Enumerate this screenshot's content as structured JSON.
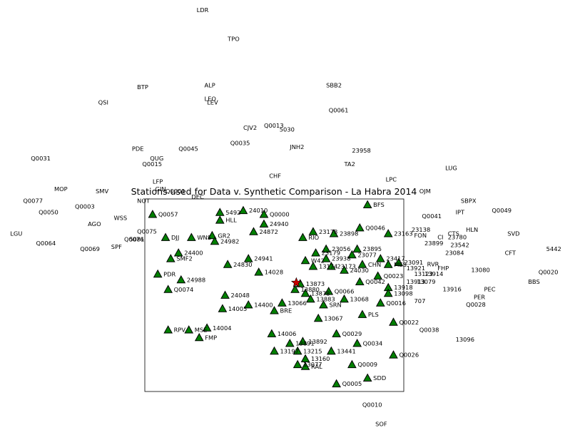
{
  "chart_data": {
    "type": "scatter",
    "title": "Stations used for Data v. Synthetic Comparison - La Habra 2014",
    "xlabel": "",
    "ylabel": "",
    "xlim": [
      0,
      100
    ],
    "ylim": [
      0,
      100
    ],
    "grid": false,
    "legend": "none",
    "marker_color": "#008000",
    "event_color": "#cc0000",
    "event": {
      "x": 58.5,
      "y": 56.5
    },
    "stations": [
      {
        "label": "BFS",
        "x": 86,
        "y": 97,
        "marker": true
      },
      {
        "label": "24010",
        "x": 38,
        "y": 94,
        "marker": true
      },
      {
        "label": "Q0057",
        "x": 3,
        "y": 92,
        "marker": true
      },
      {
        "label": "5492",
        "x": 29,
        "y": 93,
        "marker": true
      },
      {
        "label": "HLL",
        "x": 29,
        "y": 89,
        "marker": true
      },
      {
        "label": "Q0000",
        "x": 46,
        "y": 92,
        "marker": true
      },
      {
        "label": "24940",
        "x": 46,
        "y": 87,
        "marker": true
      },
      {
        "label": "24872",
        "x": 42,
        "y": 83,
        "marker": true
      },
      {
        "label": "Q0046",
        "x": 83,
        "y": 85,
        "marker": true
      },
      {
        "label": "23163",
        "x": 94,
        "y": 82,
        "marker": true
      },
      {
        "label": "WNS",
        "x": 18,
        "y": 80,
        "marker": true
      },
      {
        "label": "GR2",
        "x": 26,
        "y": 81,
        "marker": true
      },
      {
        "label": "RIO",
        "x": 61,
        "y": 80,
        "marker": true
      },
      {
        "label": "23178",
        "x": 65,
        "y": 83,
        "marker": true
      },
      {
        "label": "23898",
        "x": 73,
        "y": 82,
        "marker": true
      },
      {
        "label": "24982",
        "x": 27,
        "y": 78,
        "marker": true
      },
      {
        "label": "DJJ",
        "x": 8,
        "y": 80,
        "marker": true
      },
      {
        "label": "23895",
        "x": 82,
        "y": 74,
        "marker": true
      },
      {
        "label": "23077",
        "x": 80,
        "y": 71,
        "marker": true
      },
      {
        "label": "23417",
        "x": 91,
        "y": 69,
        "marker": true
      },
      {
        "label": "23091",
        "x": 98,
        "y": 67,
        "marker": true
      },
      {
        "label": "SMF2",
        "x": 10,
        "y": 69,
        "marker": true
      },
      {
        "label": "24941",
        "x": 40,
        "y": 69,
        "marker": true
      },
      {
        "label": "24400",
        "x": 13,
        "y": 72,
        "marker": true
      },
      {
        "label": "23179",
        "x": 66,
        "y": 72,
        "marker": true
      },
      {
        "label": "23056",
        "x": 70,
        "y": 74,
        "marker": true
      },
      {
        "label": "24830",
        "x": 32,
        "y": 66,
        "marker": true
      },
      {
        "label": "23938",
        "x": 70,
        "y": 69,
        "marker": true
      },
      {
        "label": "W42",
        "x": 62,
        "y": 68,
        "marker": true
      },
      {
        "label": "13174",
        "x": 65,
        "y": 65,
        "marker": true
      },
      {
        "label": "23173",
        "x": 72,
        "y": 65,
        "marker": true
      },
      {
        "label": "24030",
        "x": 77,
        "y": 63,
        "marker": true
      },
      {
        "label": "CHN",
        "x": 84,
        "y": 66,
        "marker": true
      },
      {
        "label": "MES",
        "x": 94,
        "y": 66,
        "marker": true
      },
      {
        "label": "Q0023",
        "x": 90,
        "y": 60,
        "marker": true
      },
      {
        "label": "PDR",
        "x": 5,
        "y": 61,
        "marker": true
      },
      {
        "label": "24988",
        "x": 14,
        "y": 58,
        "marker": true
      },
      {
        "label": "14028",
        "x": 44,
        "y": 62,
        "marker": true
      },
      {
        "label": "13873",
        "x": 60,
        "y": 56,
        "marker": true
      },
      {
        "label": "13880",
        "x": 58,
        "y": 53,
        "marker": true
      },
      {
        "label": "Q0042",
        "x": 83,
        "y": 57,
        "marker": true
      },
      {
        "label": "13918",
        "x": 94,
        "y": 54,
        "marker": true
      },
      {
        "label": "Q0074",
        "x": 9,
        "y": 53,
        "marker": true
      },
      {
        "label": "24048",
        "x": 31,
        "y": 50,
        "marker": true
      },
      {
        "label": "13878",
        "x": 62,
        "y": 51,
        "marker": true
      },
      {
        "label": "Q0066",
        "x": 71,
        "y": 52,
        "marker": true
      },
      {
        "label": "13098",
        "x": 94,
        "y": 51,
        "marker": true
      },
      {
        "label": "13883",
        "x": 64,
        "y": 48,
        "marker": true
      },
      {
        "label": "13068",
        "x": 77,
        "y": 48,
        "marker": true
      },
      {
        "label": "13066",
        "x": 53,
        "y": 46,
        "marker": true
      },
      {
        "label": "Q0016",
        "x": 91,
        "y": 46,
        "marker": true
      },
      {
        "label": "SRN",
        "x": 69,
        "y": 45,
        "marker": true
      },
      {
        "label": "14400",
        "x": 40,
        "y": 45,
        "marker": true
      },
      {
        "label": "14005",
        "x": 30,
        "y": 43,
        "marker": true
      },
      {
        "label": "BRE",
        "x": 50,
        "y": 42,
        "marker": true
      },
      {
        "label": "PLS",
        "x": 84,
        "y": 40,
        "marker": true
      },
      {
        "label": "Q0022",
        "x": 96,
        "y": 36,
        "marker": true
      },
      {
        "label": "13067",
        "x": 67,
        "y": 38,
        "marker": true
      },
      {
        "label": "14004",
        "x": 24,
        "y": 33,
        "marker": true
      },
      {
        "label": "RPV",
        "x": 9,
        "y": 32,
        "marker": true
      },
      {
        "label": "MSE",
        "x": 17,
        "y": 32,
        "marker": true
      },
      {
        "label": "FMP",
        "x": 21,
        "y": 28,
        "marker": true
      },
      {
        "label": "14006",
        "x": 49,
        "y": 30,
        "marker": true
      },
      {
        "label": "Q0029",
        "x": 74,
        "y": 30,
        "marker": true
      },
      {
        "label": "13892",
        "x": 61,
        "y": 26,
        "marker": true
      },
      {
        "label": "13891",
        "x": 56,
        "y": 25,
        "marker": true
      },
      {
        "label": "Q0034",
        "x": 82,
        "y": 25,
        "marker": true
      },
      {
        "label": "13197",
        "x": 50,
        "y": 21,
        "marker": true
      },
      {
        "label": "13215",
        "x": 59,
        "y": 21,
        "marker": true
      },
      {
        "label": "13441",
        "x": 72,
        "y": 21,
        "marker": true
      },
      {
        "label": "Q0026",
        "x": 96,
        "y": 19,
        "marker": true
      },
      {
        "label": "13160",
        "x": 62,
        "y": 17,
        "marker": true
      },
      {
        "label": "13077",
        "x": 59,
        "y": 14,
        "marker": true
      },
      {
        "label": "RAL",
        "x": 62,
        "y": 13,
        "marker": true
      },
      {
        "label": "Q0009",
        "x": 80,
        "y": 14,
        "marker": true
      },
      {
        "label": "SDD",
        "x": 86,
        "y": 7,
        "marker": true
      },
      {
        "label": "Q0005",
        "x": 74,
        "y": 4,
        "marker": true
      },
      {
        "label": "LDR",
        "x": 20,
        "y": 197,
        "marker": false
      },
      {
        "label": "TPO",
        "x": 32,
        "y": 182,
        "marker": false
      },
      {
        "label": "BTP",
        "x": -3,
        "y": 157,
        "marker": false
      },
      {
        "label": "ALP",
        "x": 23,
        "y": 158,
        "marker": false
      },
      {
        "label": "SBB2",
        "x": 70,
        "y": 158,
        "marker": false
      },
      {
        "label": "LEO",
        "x": 23,
        "y": 151,
        "marker": false
      },
      {
        "label": "LEV",
        "x": 24,
        "y": 149,
        "marker": false
      },
      {
        "label": "Q0061",
        "x": 71,
        "y": 145,
        "marker": false
      },
      {
        "label": "QSI",
        "x": -18,
        "y": 149,
        "marker": false
      },
      {
        "label": "CJV2",
        "x": 38,
        "y": 136,
        "marker": false
      },
      {
        "label": "Q0013",
        "x": 46,
        "y": 137,
        "marker": false
      },
      {
        "label": "5030",
        "x": 52,
        "y": 135,
        "marker": false
      },
      {
        "label": "Q0035",
        "x": 33,
        "y": 128,
        "marker": false
      },
      {
        "label": "JNH2",
        "x": 56,
        "y": 126,
        "marker": false
      },
      {
        "label": "23958",
        "x": 80,
        "y": 124,
        "marker": false
      },
      {
        "label": "PDE",
        "x": -5,
        "y": 125,
        "marker": false
      },
      {
        "label": "Q0045",
        "x": 13,
        "y": 125,
        "marker": false
      },
      {
        "label": "Q0031",
        "x": -44,
        "y": 120,
        "marker": false
      },
      {
        "label": "QUG",
        "x": 2,
        "y": 120,
        "marker": false
      },
      {
        "label": "Q0015",
        "x": -1,
        "y": 117,
        "marker": false
      },
      {
        "label": "TA2",
        "x": 77,
        "y": 117,
        "marker": false
      },
      {
        "label": "LUG",
        "x": 116,
        "y": 115,
        "marker": false
      },
      {
        "label": "CHF",
        "x": 48,
        "y": 111,
        "marker": false
      },
      {
        "label": "LPC",
        "x": 93,
        "y": 109,
        "marker": false
      },
      {
        "label": "LFP",
        "x": 3,
        "y": 108,
        "marker": false
      },
      {
        "label": "MOP",
        "x": -35,
        "y": 104,
        "marker": false
      },
      {
        "label": "SMV",
        "x": -19,
        "y": 103,
        "marker": false
      },
      {
        "label": "GIN",
        "x": 4,
        "y": 104,
        "marker": false
      },
      {
        "label": "Q0001",
        "x": 8,
        "y": 103,
        "marker": false
      },
      {
        "label": "DEC",
        "x": 18,
        "y": 100,
        "marker": false
      },
      {
        "label": "OJM",
        "x": 106,
        "y": 103,
        "marker": false
      },
      {
        "label": "Q0077",
        "x": -47,
        "y": 98,
        "marker": false
      },
      {
        "label": "NOT",
        "x": -3,
        "y": 98,
        "marker": false
      },
      {
        "label": "Q0003",
        "x": -27,
        "y": 95,
        "marker": false
      },
      {
        "label": "SBPX",
        "x": 122,
        "y": 98,
        "marker": false
      },
      {
        "label": "IPT",
        "x": 120,
        "y": 92,
        "marker": false
      },
      {
        "label": "Q0049",
        "x": 134,
        "y": 93,
        "marker": false
      },
      {
        "label": "Q0050",
        "x": -41,
        "y": 92,
        "marker": false
      },
      {
        "label": "WSS",
        "x": -12,
        "y": 89,
        "marker": false
      },
      {
        "label": "Q0041",
        "x": 107,
        "y": 90,
        "marker": false
      },
      {
        "label": "AGO",
        "x": -22,
        "y": 86,
        "marker": false
      },
      {
        "label": "Q0075",
        "x": -3,
        "y": 82,
        "marker": false
      },
      {
        "label": "LGU",
        "x": -52,
        "y": 81,
        "marker": false
      },
      {
        "label": "23138",
        "x": 103,
        "y": 83,
        "marker": false
      },
      {
        "label": "HLN",
        "x": 124,
        "y": 83,
        "marker": false
      },
      {
        "label": "SVD",
        "x": 140,
        "y": 81,
        "marker": false
      },
      {
        "label": "FON",
        "x": 104,
        "y": 80,
        "marker": false
      },
      {
        "label": "CTS",
        "x": 117,
        "y": 81,
        "marker": false
      },
      {
        "label": "Q0076",
        "x": -8,
        "y": 78,
        "marker": false
      },
      {
        "label": "5081",
        "x": -6,
        "y": 78,
        "marker": false
      },
      {
        "label": "CI",
        "x": 113,
        "y": 79,
        "marker": false
      },
      {
        "label": "23780",
        "x": 117,
        "y": 79,
        "marker": false
      },
      {
        "label": "23899",
        "x": 108,
        "y": 76,
        "marker": false
      },
      {
        "label": "23542",
        "x": 118,
        "y": 75,
        "marker": false
      },
      {
        "label": "Q0064",
        "x": -42,
        "y": 76,
        "marker": false
      },
      {
        "label": "Q0069",
        "x": -25,
        "y": 73,
        "marker": false
      },
      {
        "label": "SPF",
        "x": -13,
        "y": 74,
        "marker": false
      },
      {
        "label": "5442",
        "x": 155,
        "y": 73,
        "marker": false
      },
      {
        "label": "CFT",
        "x": 139,
        "y": 71,
        "marker": false
      },
      {
        "label": "23084",
        "x": 116,
        "y": 71,
        "marker": false
      },
      {
        "label": "RVR",
        "x": 109,
        "y": 65,
        "marker": false
      },
      {
        "label": "FHP",
        "x": 113,
        "y": 63,
        "marker": false
      },
      {
        "label": "13080",
        "x": 126,
        "y": 62,
        "marker": false
      },
      {
        "label": "13921",
        "x": 101,
        "y": 63,
        "marker": false
      },
      {
        "label": "13123",
        "x": 104,
        "y": 60,
        "marker": false
      },
      {
        "label": "13914",
        "x": 108,
        "y": 60,
        "marker": false
      },
      {
        "label": "Q0020",
        "x": 152,
        "y": 61,
        "marker": false
      },
      {
        "label": "BBS",
        "x": 148,
        "y": 56,
        "marker": false
      },
      {
        "label": "13913",
        "x": 101,
        "y": 56,
        "marker": false
      },
      {
        "label": "13079",
        "x": 105,
        "y": 56,
        "marker": false
      },
      {
        "label": "13916",
        "x": 115,
        "y": 52,
        "marker": false
      },
      {
        "label": "PEC",
        "x": 131,
        "y": 52,
        "marker": false
      },
      {
        "label": "PER",
        "x": 127,
        "y": 48,
        "marker": false
      },
      {
        "label": "707",
        "x": 104,
        "y": 46,
        "marker": false
      },
      {
        "label": "Q0028",
        "x": 124,
        "y": 44,
        "marker": false
      },
      {
        "label": "Q0038",
        "x": 106,
        "y": 31,
        "marker": false
      },
      {
        "label": "13096",
        "x": 120,
        "y": 26,
        "marker": false
      },
      {
        "label": "Q0010",
        "x": 84,
        "y": -8,
        "marker": false
      },
      {
        "label": "SOF",
        "x": 89,
        "y": -18,
        "marker": false
      }
    ]
  }
}
